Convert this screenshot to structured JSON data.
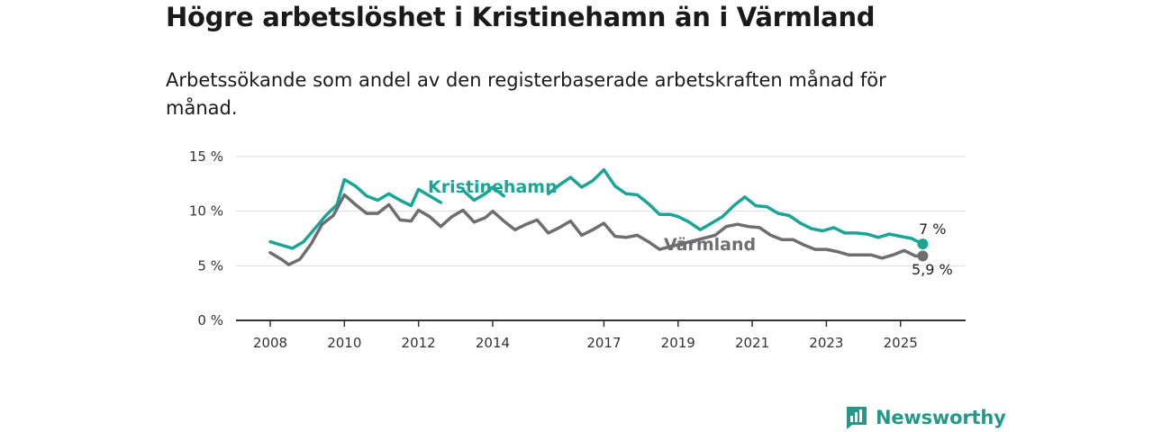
{
  "header": {
    "title": "Högre arbetslöshet i Kristinehamn än i Värmland",
    "subtitle": "Arbetssökande som andel av den registerbaserade arbetskraften månad för månad."
  },
  "brand": {
    "name": "Newsworthy",
    "icon": "newsworthy-logo-icon"
  },
  "colors": {
    "kristinehamn": "#1aa596",
    "varmland": "#6f6d70",
    "axis": "#333333",
    "grid": "#dddddd"
  },
  "chart_data": {
    "type": "line",
    "title": "Högre arbetslöshet i Kristinehamn än i Värmland",
    "subtitle": "Arbetssökande som andel av den registerbaserade arbetskraften månad för månad.",
    "x_ticks": [
      "2008",
      "2010",
      "2012",
      "2014",
      "2017",
      "2019",
      "2021",
      "2023",
      "2025"
    ],
    "y_ticks": [
      "0 %",
      "5 %",
      "10 %",
      "15 %"
    ],
    "ylim": [
      0,
      15
    ],
    "xlim": [
      2007.9,
      2026.5
    ],
    "grid": "horizontal",
    "series": [
      {
        "name": "Kristinehamn",
        "end_label": "7 %",
        "points": [
          [
            2008.0,
            7.2
          ],
          [
            2008.3,
            6.9
          ],
          [
            2008.6,
            6.6
          ],
          [
            2008.9,
            7.2
          ],
          [
            2009.2,
            8.4
          ],
          [
            2009.5,
            9.6
          ],
          [
            2009.8,
            10.6
          ],
          [
            2010.0,
            12.9
          ],
          [
            2010.3,
            12.3
          ],
          [
            2010.6,
            11.4
          ],
          [
            2010.9,
            11.0
          ],
          [
            2011.2,
            11.6
          ],
          [
            2011.5,
            11.0
          ],
          [
            2011.8,
            10.5
          ],
          [
            2012.0,
            12.0
          ],
          [
            2012.3,
            11.4
          ],
          [
            2012.6,
            10.8
          ],
          [
            2012.9,
            11.5
          ],
          [
            2013.2,
            11.9
          ],
          [
            2013.5,
            11.0
          ],
          [
            2013.8,
            11.6
          ],
          [
            2014.0,
            12.2
          ],
          [
            2014.3,
            11.4
          ],
          [
            2014.6,
            11.0
          ],
          [
            2014.9,
            11.8
          ],
          [
            2015.2,
            11.3
          ],
          [
            2015.5,
            11.6
          ],
          [
            2015.8,
            12.4
          ],
          [
            2016.1,
            13.1
          ],
          [
            2016.4,
            12.2
          ],
          [
            2016.7,
            12.8
          ],
          [
            2017.0,
            13.8
          ],
          [
            2017.3,
            12.3
          ],
          [
            2017.6,
            11.6
          ],
          [
            2017.9,
            11.5
          ],
          [
            2018.2,
            10.7
          ],
          [
            2018.5,
            9.7
          ],
          [
            2018.8,
            9.7
          ],
          [
            2019.0,
            9.5
          ],
          [
            2019.3,
            9.0
          ],
          [
            2019.6,
            8.3
          ],
          [
            2019.9,
            8.9
          ],
          [
            2020.2,
            9.5
          ],
          [
            2020.5,
            10.5
          ],
          [
            2020.8,
            11.3
          ],
          [
            2021.1,
            10.5
          ],
          [
            2021.4,
            10.4
          ],
          [
            2021.7,
            9.8
          ],
          [
            2022.0,
            9.6
          ],
          [
            2022.3,
            8.9
          ],
          [
            2022.6,
            8.4
          ],
          [
            2022.9,
            8.2
          ],
          [
            2023.2,
            8.5
          ],
          [
            2023.5,
            8.0
          ],
          [
            2023.8,
            8.0
          ],
          [
            2024.1,
            7.9
          ],
          [
            2024.4,
            7.6
          ],
          [
            2024.7,
            7.9
          ],
          [
            2025.0,
            7.7
          ],
          [
            2025.3,
            7.5
          ],
          [
            2025.6,
            7.0
          ]
        ]
      },
      {
        "name": "Värmland",
        "end_label": "5,9 %",
        "points": [
          [
            2008.0,
            6.2
          ],
          [
            2008.3,
            5.6
          ],
          [
            2008.5,
            5.1
          ],
          [
            2008.8,
            5.6
          ],
          [
            2009.1,
            7.0
          ],
          [
            2009.4,
            8.8
          ],
          [
            2009.7,
            9.6
          ],
          [
            2010.0,
            11.5
          ],
          [
            2010.3,
            10.6
          ],
          [
            2010.6,
            9.8
          ],
          [
            2010.9,
            9.8
          ],
          [
            2011.2,
            10.6
          ],
          [
            2011.5,
            9.2
          ],
          [
            2011.8,
            9.1
          ],
          [
            2012.0,
            10.1
          ],
          [
            2012.3,
            9.5
          ],
          [
            2012.6,
            8.6
          ],
          [
            2012.9,
            9.5
          ],
          [
            2013.2,
            10.1
          ],
          [
            2013.5,
            9.0
          ],
          [
            2013.8,
            9.4
          ],
          [
            2014.0,
            10.0
          ],
          [
            2014.3,
            9.1
          ],
          [
            2014.6,
            8.3
          ],
          [
            2014.9,
            8.8
          ],
          [
            2015.2,
            9.2
          ],
          [
            2015.5,
            8.0
          ],
          [
            2015.8,
            8.5
          ],
          [
            2016.1,
            9.1
          ],
          [
            2016.4,
            7.8
          ],
          [
            2016.7,
            8.3
          ],
          [
            2017.0,
            8.9
          ],
          [
            2017.3,
            7.7
          ],
          [
            2017.6,
            7.6
          ],
          [
            2017.9,
            7.8
          ],
          [
            2018.2,
            7.2
          ],
          [
            2018.5,
            6.5
          ],
          [
            2020.0,
            7.8
          ],
          [
            2020.3,
            8.6
          ],
          [
            2020.6,
            8.8
          ],
          [
            2020.9,
            8.6
          ],
          [
            2021.2,
            8.5
          ],
          [
            2021.5,
            7.8
          ],
          [
            2021.8,
            7.4
          ],
          [
            2022.1,
            7.4
          ],
          [
            2022.4,
            6.9
          ],
          [
            2022.7,
            6.5
          ],
          [
            2023.0,
            6.5
          ],
          [
            2023.3,
            6.3
          ],
          [
            2023.6,
            6.0
          ],
          [
            2023.9,
            6.0
          ],
          [
            2024.2,
            6.0
          ],
          [
            2024.5,
            5.7
          ],
          [
            2024.8,
            6.0
          ],
          [
            2025.1,
            6.4
          ],
          [
            2025.4,
            5.9
          ],
          [
            2025.6,
            5.9
          ]
        ]
      }
    ],
    "gaps": {
      "Kristinehamn": [
        [
          2012.7,
          2013.0
        ],
        [
          2013.6,
          2013.8
        ],
        [
          2014.5,
          2014.7
        ],
        [
          2015.1,
          2015.4
        ]
      ],
      "Värmland": [
        [
          2018.6,
          2019.9
        ]
      ]
    }
  }
}
